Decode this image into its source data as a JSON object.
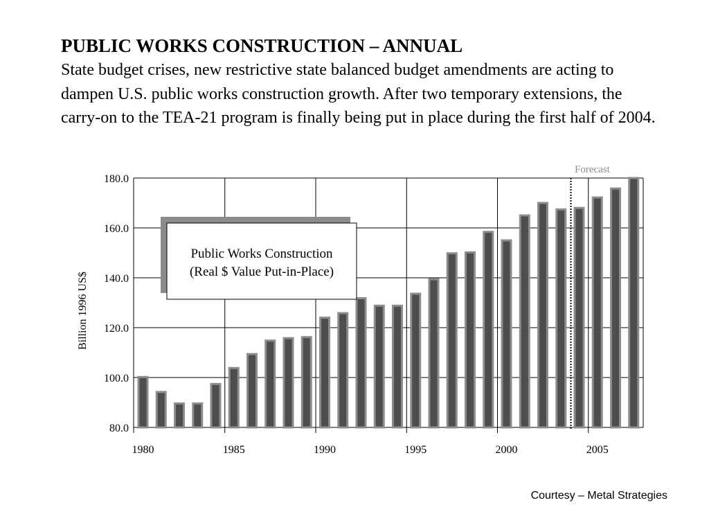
{
  "slide": {
    "title": "PUBLIC WORKS CONSTRUCTION – ANNUAL",
    "description": "State budget crises, new restrictive state balanced budget amendments are acting to dampen U.S. public works construction growth. After two temporary extensions, the carry-on to the TEA-21 program is finally being put in place during the first half of 2004.",
    "courtesy": "Courtesy – Metal Strategies"
  },
  "colors": {
    "bar_fill": "#4d4d4d",
    "bar_edge": "#8c8c8c",
    "grid": "#000000",
    "forecast_label": "#8a8a8a",
    "legend_shadow": "#8a8a8a"
  },
  "chart_data": {
    "type": "bar",
    "title": "",
    "legend_text": [
      "Public Works Construction",
      "(Real $ Value Put-in-Place)"
    ],
    "xlabel": "",
    "ylabel": "Billion 1996 US$",
    "ylim": [
      80,
      180
    ],
    "yticks": [
      180,
      160,
      140,
      120,
      100,
      80
    ],
    "ytick_labels": [
      "180.0",
      "160.0",
      "140.0",
      "120.0",
      "100.0",
      "80.0"
    ],
    "xticks": [
      "1980",
      "1985",
      "1990",
      "1995",
      "2000",
      "2005"
    ],
    "grid": true,
    "forecast_label": "Forecast",
    "forecast_start": 2004,
    "categories": [
      1980,
      1981,
      1982,
      1983,
      1984,
      1985,
      1986,
      1987,
      1988,
      1989,
      1990,
      1991,
      1992,
      1993,
      1994,
      1995,
      1996,
      1997,
      1998,
      1999,
      2000,
      2001,
      2002,
      2003,
      2004,
      2005,
      2006,
      2007
    ],
    "values": [
      100.2,
      94.2,
      89.6,
      89.6,
      97.4,
      103.8,
      109.4,
      114.8,
      115.8,
      116.2,
      124.0,
      125.8,
      131.8,
      128.8,
      128.8,
      133.6,
      139.4,
      149.8,
      150.2,
      158.4,
      155.0,
      165.0,
      170.0,
      167.4,
      168.0,
      172.2,
      175.8,
      180.0
    ]
  }
}
